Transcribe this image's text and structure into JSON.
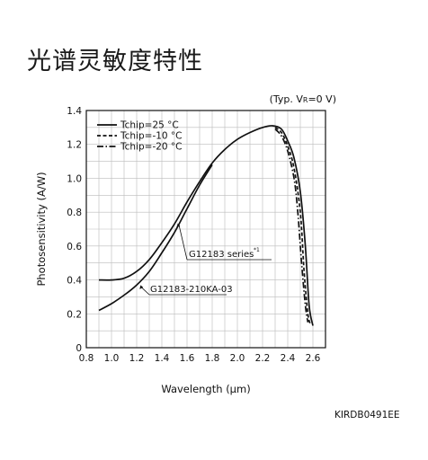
{
  "page": {
    "title": "光谱灵敏度特性",
    "condition": "(Typ. VR=0 V)",
    "condition_main": "(Typ. V",
    "condition_sub": "R",
    "condition_tail": "=0 V)",
    "figure_code": "KIRDB0491EE"
  },
  "chart_data": {
    "type": "line",
    "title": "",
    "xlabel": "Wavelength (μm)",
    "ylabel": "Photosensitivity (A/W)",
    "xlim": [
      0.8,
      2.7
    ],
    "ylim": [
      0,
      1.4
    ],
    "xticks": [
      0.8,
      1.0,
      1.2,
      1.4,
      1.6,
      1.8,
      2.0,
      2.2,
      2.4,
      2.6
    ],
    "yticks": [
      0,
      0.2,
      0.4,
      0.6,
      0.8,
      1.0,
      1.2,
      1.4
    ],
    "xtick_labels": [
      "0.8",
      "1.0",
      "1.2",
      "1.4",
      "1.6",
      "1.8",
      "2.0",
      "2.2",
      "2.4",
      "2.6"
    ],
    "ytick_labels": [
      "0",
      "0.2",
      "0.4",
      "0.6",
      "0.8",
      "1.0",
      "1.2",
      "1.4"
    ],
    "grid": true,
    "legend_position": "top-left",
    "legend": [
      "Tchip=25 °C",
      "Tchip=-10 °C",
      "Tchip=-20 °C"
    ],
    "series": [
      {
        "name": "Tchip=25 °C",
        "style": "solid",
        "curve": "G12183 series",
        "x": [
          0.9,
          1.0,
          1.1,
          1.2,
          1.3,
          1.4,
          1.5,
          1.6,
          1.7,
          1.8,
          1.9,
          2.0,
          2.1,
          2.2,
          2.28,
          2.35,
          2.4,
          2.45,
          2.5,
          2.54,
          2.57,
          2.6
        ],
        "y": [
          0.4,
          0.4,
          0.41,
          0.45,
          0.52,
          0.62,
          0.73,
          0.86,
          0.98,
          1.09,
          1.17,
          1.23,
          1.27,
          1.3,
          1.31,
          1.29,
          1.22,
          1.12,
          0.92,
          0.6,
          0.25,
          0.13
        ]
      },
      {
        "name": "Tchip=25 °C",
        "style": "solid",
        "curve": "G12183-210KA-03",
        "x": [
          0.9,
          1.0,
          1.1,
          1.2,
          1.3,
          1.4,
          1.5,
          1.6,
          1.7,
          1.8
        ],
        "y": [
          0.22,
          0.26,
          0.31,
          0.37,
          0.45,
          0.56,
          0.68,
          0.82,
          0.96,
          1.08
        ]
      },
      {
        "name": "Tchip=-10 °C",
        "style": "dashed",
        "curve": "G12183 series",
        "x": [
          2.3,
          2.35,
          2.4,
          2.45,
          2.5,
          2.53,
          2.56,
          2.58
        ],
        "y": [
          1.3,
          1.27,
          1.19,
          1.06,
          0.8,
          0.45,
          0.2,
          0.14
        ]
      },
      {
        "name": "Tchip=-20 °C",
        "style": "dashdot",
        "curve": "G12183 series",
        "x": [
          2.3,
          2.35,
          2.4,
          2.45,
          2.48,
          2.51,
          2.54,
          2.56
        ],
        "y": [
          1.29,
          1.25,
          1.16,
          1.0,
          0.8,
          0.5,
          0.25,
          0.15
        ]
      }
    ],
    "annotations": [
      {
        "text": "G12183 series",
        "sup": "*1",
        "target_x": 1.52,
        "target_y": 0.74
      },
      {
        "text": "G12183-210KA-03",
        "target_x": 1.22,
        "target_y": 0.38
      }
    ]
  }
}
